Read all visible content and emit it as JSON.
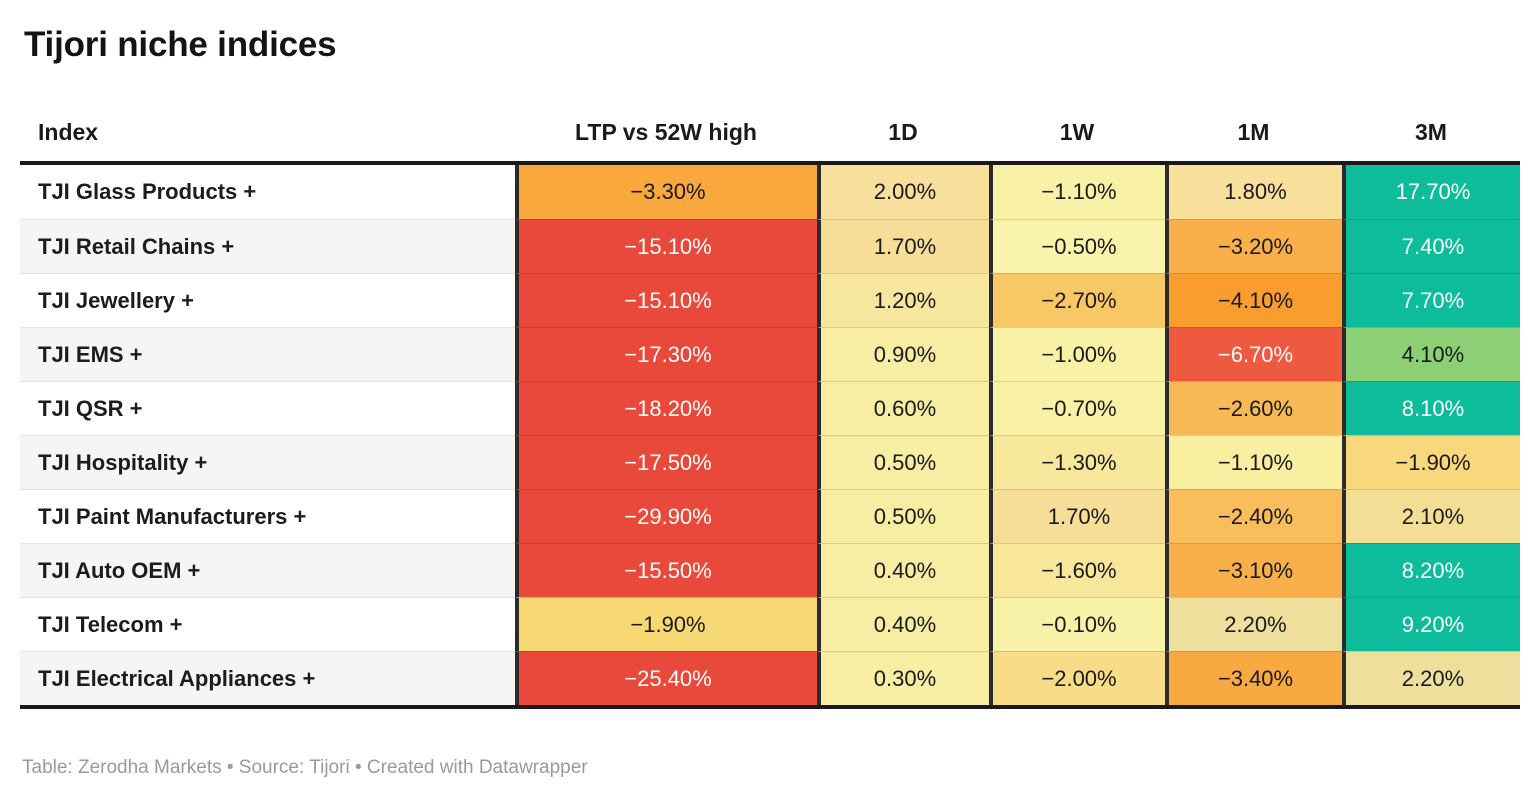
{
  "title": "Tijori niche indices",
  "footer": "Table: Zerodha Markets • Source: Tijori • Created with Datawrapper",
  "palette": {
    "strong_negative_red": "#e8493a",
    "negative_red_orange": "#ee5a40",
    "orange": "#f9a83e",
    "yellow": "#f6d973",
    "pale_yellow": "#f8f1a6",
    "tan": "#f8df9b",
    "khaki": "#eee09c",
    "positive_teal": "#0dbc9b",
    "positive_green": "#8ccf75",
    "header_rule": "#1a1a1a",
    "column_separator": "#2b2b2b",
    "row_stripe": "#f5f5f5",
    "footer_text": "#9a9a9a"
  },
  "chart_data": {
    "type": "table",
    "title": "Tijori niche indices",
    "legend_position": "none",
    "grid": "heatmap-cells",
    "columns": [
      "Index",
      "LTP vs 52W high",
      "1D",
      "1W",
      "1M",
      "3M"
    ],
    "rows": [
      {
        "name": "TJI Glass Products +",
        "cells": [
          {
            "v": "−3.30%",
            "bg": "#f9a83e",
            "fg": "#1a1a1a"
          },
          {
            "v": "2.00%",
            "bg": "#f8df9b",
            "fg": "#1a1a1a"
          },
          {
            "v": "−1.10%",
            "bg": "#f8f1a6",
            "fg": "#1a1a1a"
          },
          {
            "v": "1.80%",
            "bg": "#f8df9b",
            "fg": "#1a1a1a"
          },
          {
            "v": "17.70%",
            "bg": "#0dbc9b",
            "fg": "#ffffff"
          }
        ]
      },
      {
        "name": "TJI Retail Chains +",
        "cells": [
          {
            "v": "−15.10%",
            "bg": "#e8493a",
            "fg": "#ffffff"
          },
          {
            "v": "1.70%",
            "bg": "#f6dd98",
            "fg": "#1a1a1a"
          },
          {
            "v": "−0.50%",
            "bg": "#f9f3ab",
            "fg": "#1a1a1a"
          },
          {
            "v": "−3.20%",
            "bg": "#f9b04b",
            "fg": "#1a1a1a"
          },
          {
            "v": "7.40%",
            "bg": "#0dbc9b",
            "fg": "#ffffff"
          }
        ]
      },
      {
        "name": "TJI Jewellery +",
        "cells": [
          {
            "v": "−15.10%",
            "bg": "#e8493a",
            "fg": "#ffffff"
          },
          {
            "v": "1.20%",
            "bg": "#f6e69e",
            "fg": "#1a1a1a"
          },
          {
            "v": "−2.70%",
            "bg": "#f9c866",
            "fg": "#1a1a1a"
          },
          {
            "v": "−4.10%",
            "bg": "#f99d2e",
            "fg": "#1a1a1a"
          },
          {
            "v": "7.70%",
            "bg": "#0dbc9b",
            "fg": "#ffffff"
          }
        ]
      },
      {
        "name": "TJI EMS +",
        "cells": [
          {
            "v": "−17.30%",
            "bg": "#e8493a",
            "fg": "#ffffff"
          },
          {
            "v": "0.90%",
            "bg": "#f7eda3",
            "fg": "#1a1a1a"
          },
          {
            "v": "−1.00%",
            "bg": "#f8f1a6",
            "fg": "#1a1a1a"
          },
          {
            "v": "−6.70%",
            "bg": "#ee5a40",
            "fg": "#ffffff"
          },
          {
            "v": "4.10%",
            "bg": "#8ccf75",
            "fg": "#1a1a1a"
          }
        ]
      },
      {
        "name": "TJI QSR +",
        "cells": [
          {
            "v": "−18.20%",
            "bg": "#e8493a",
            "fg": "#ffffff"
          },
          {
            "v": "0.60%",
            "bg": "#f7eda3",
            "fg": "#1a1a1a"
          },
          {
            "v": "−0.70%",
            "bg": "#f8f1a6",
            "fg": "#1a1a1a"
          },
          {
            "v": "−2.60%",
            "bg": "#f9ba55",
            "fg": "#1a1a1a"
          },
          {
            "v": "8.10%",
            "bg": "#0dbc9b",
            "fg": "#ffffff"
          }
        ]
      },
      {
        "name": "TJI Hospitality +",
        "cells": [
          {
            "v": "−17.50%",
            "bg": "#e8493a",
            "fg": "#ffffff"
          },
          {
            "v": "0.50%",
            "bg": "#f7eda3",
            "fg": "#1a1a1a"
          },
          {
            "v": "−1.30%",
            "bg": "#f7e89b",
            "fg": "#1a1a1a"
          },
          {
            "v": "−1.10%",
            "bg": "#f8efa1",
            "fg": "#1a1a1a"
          },
          {
            "v": "−1.90%",
            "bg": "#f8d77d",
            "fg": "#1a1a1a"
          }
        ]
      },
      {
        "name": "TJI Paint Manufacturers +",
        "cells": [
          {
            "v": "−29.90%",
            "bg": "#e8493a",
            "fg": "#ffffff"
          },
          {
            "v": "0.50%",
            "bg": "#f7eda3",
            "fg": "#1a1a1a"
          },
          {
            "v": "1.70%",
            "bg": "#f6dd98",
            "fg": "#1a1a1a"
          },
          {
            "v": "−2.40%",
            "bg": "#f9bd5b",
            "fg": "#1a1a1a"
          },
          {
            "v": "2.10%",
            "bg": "#f2df95",
            "fg": "#1a1a1a"
          }
        ]
      },
      {
        "name": "TJI Auto OEM +",
        "cells": [
          {
            "v": "−15.50%",
            "bg": "#e8493a",
            "fg": "#ffffff"
          },
          {
            "v": "0.40%",
            "bg": "#f7eda3",
            "fg": "#1a1a1a"
          },
          {
            "v": "−1.60%",
            "bg": "#f8e69a",
            "fg": "#1a1a1a"
          },
          {
            "v": "−3.10%",
            "bg": "#f9b04b",
            "fg": "#1a1a1a"
          },
          {
            "v": "8.20%",
            "bg": "#0dbc9b",
            "fg": "#ffffff"
          }
        ]
      },
      {
        "name": "TJI Telecom +",
        "cells": [
          {
            "v": "−1.90%",
            "bg": "#f6d973",
            "fg": "#1a1a1a"
          },
          {
            "v": "0.40%",
            "bg": "#f7eda3",
            "fg": "#1a1a1a"
          },
          {
            "v": "−0.10%",
            "bg": "#f8f1a8",
            "fg": "#1a1a1a"
          },
          {
            "v": "2.20%",
            "bg": "#eee09c",
            "fg": "#1a1a1a"
          },
          {
            "v": "9.20%",
            "bg": "#0dbc9b",
            "fg": "#ffffff"
          }
        ]
      },
      {
        "name": "TJI Electrical Appliances +",
        "cells": [
          {
            "v": "−25.40%",
            "bg": "#e8493a",
            "fg": "#ffffff"
          },
          {
            "v": "0.30%",
            "bg": "#f7eda3",
            "fg": "#1a1a1a"
          },
          {
            "v": "−2.00%",
            "bg": "#f8dc87",
            "fg": "#1a1a1a"
          },
          {
            "v": "−3.40%",
            "bg": "#f9a941",
            "fg": "#1a1a1a"
          },
          {
            "v": "2.20%",
            "bg": "#eee09c",
            "fg": "#1a1a1a"
          }
        ]
      }
    ]
  }
}
